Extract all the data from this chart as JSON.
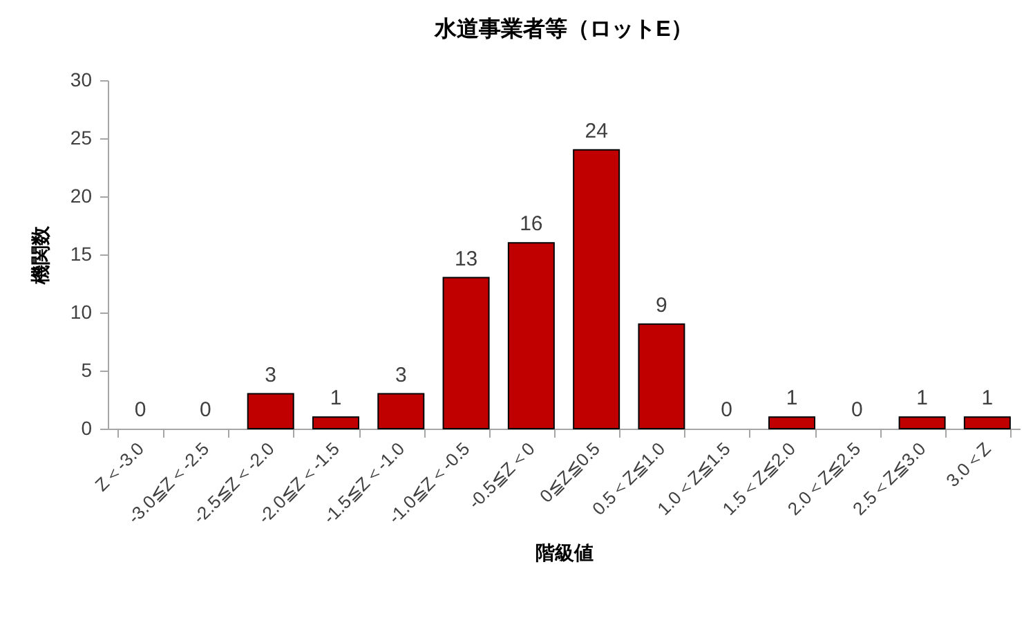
{
  "chart_data": {
    "type": "bar",
    "title": "水道事業者等（ロットE）",
    "xlabel": "階級値",
    "ylabel": "機関数",
    "categories": [
      "Z＜-3.0",
      "-3.0≦Z＜-2.5",
      "-2.5≦Z＜-2.0",
      "-2.0≦Z＜-1.5",
      "-1.5≦Z＜-1.0",
      "-1.0≦Z＜-0.5",
      "-0.5≦Z＜0",
      "0≦Z≦0.5",
      "0.5＜Z≦1.0",
      "1.0＜Z≦1.5",
      "1.5＜Z≦2.0",
      "2.0＜Z≦2.5",
      "2.5＜Z≦3.0",
      "3.0＜Z"
    ],
    "values": [
      0,
      0,
      3,
      1,
      3,
      13,
      16,
      24,
      9,
      0,
      1,
      0,
      1,
      1
    ],
    "color": "#c00000",
    "ylim": [
      0,
      30
    ],
    "yticks": [
      0,
      5,
      10,
      15,
      20,
      25,
      30
    ],
    "data_labels": true
  }
}
